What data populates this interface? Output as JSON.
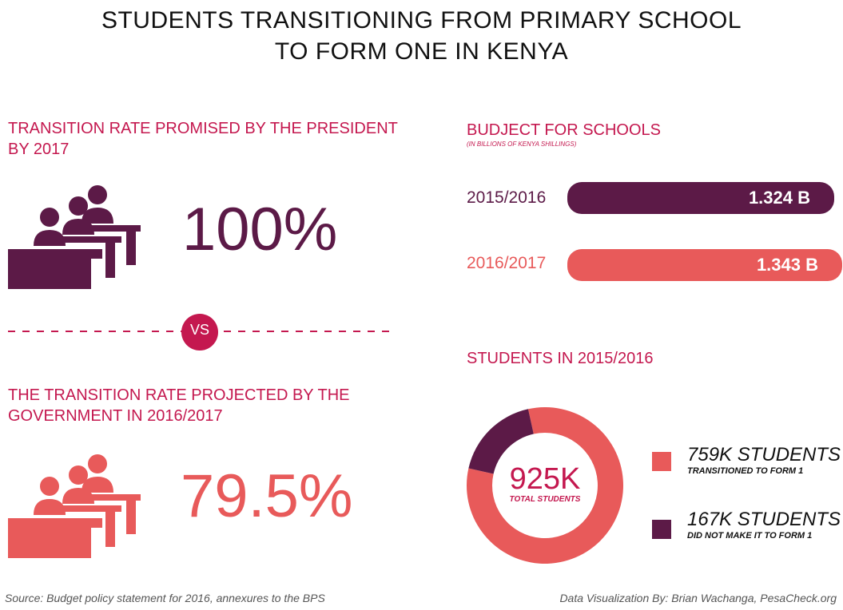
{
  "title_line1": "STUDENTS TRANSITIONING FROM PRIMARY SCHOOL",
  "title_line2": "TO FORM ONE IN KENYA",
  "promise": {
    "heading_line1": "TRANSITION RATE PROMISED BY THE PRESIDENT",
    "heading_line2": "BY 2017",
    "value": "100%",
    "color": "#5c1a47"
  },
  "vs_label": "VS",
  "projected": {
    "heading_line1": "THE TRANSITION RATE PROJECTED BY THE",
    "heading_line2": "GOVERNMENT IN 2016/2017",
    "value": "79.5%",
    "color": "#e85a5a"
  },
  "budget": {
    "heading": "BUDJECT FOR SCHOOLS",
    "subheading": "(IN BILLIONS OF KENYA SHILLINGS)"
  },
  "students": {
    "heading": "STUDENTS IN 2015/2016",
    "center_value": "925K",
    "center_label": "TOTAL STUDENTS",
    "legend": [
      {
        "main": "759K STUDENTS",
        "sub": "TRANSITIONED TO FORM 1",
        "color": "#e85a5a"
      },
      {
        "main": "167K STUDENTS",
        "sub": "DID NOT MAKE IT TO  FORM 1",
        "color": "#5c1a47"
      }
    ]
  },
  "chart_data": [
    {
      "type": "bar",
      "title": "BUDJECT FOR SCHOOLS",
      "subtitle": "(IN BILLIONS OF KENYA SHILLINGS)",
      "categories": [
        "2015/2016",
        "2016/2017"
      ],
      "values": [
        1.324,
        1.343
      ],
      "value_labels": [
        "1.324 B",
        "1.343 B"
      ],
      "colors": [
        "#5c1a47",
        "#e85a5a"
      ],
      "orientation": "horizontal"
    },
    {
      "type": "pie",
      "title": "STUDENTS IN 2015/2016",
      "categories": [
        "759K STUDENTS",
        "167K STUDENTS"
      ],
      "values": [
        759,
        167
      ],
      "colors": [
        "#e85a5a",
        "#5c1a47"
      ]
    }
  ],
  "footer": {
    "source": "Source: Budget policy statement for 2016, annexures to the  BPS",
    "credit": "Data Visualization By: Brian Wachanga, PesaCheck.org"
  }
}
